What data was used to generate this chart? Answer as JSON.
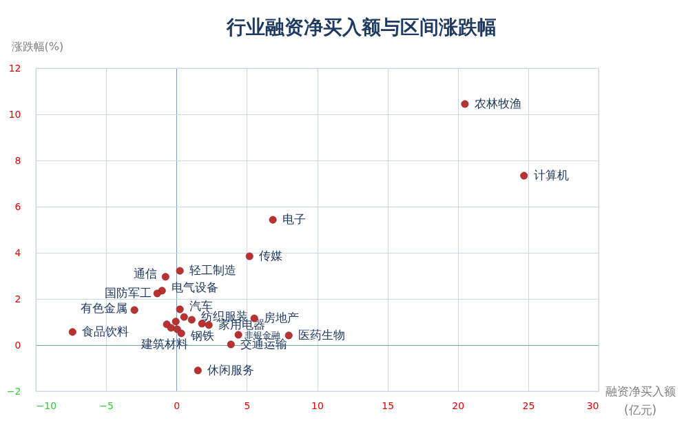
{
  "chart_data": {
    "type": "scatter",
    "title": "行业融资净买入额与区间涨跌幅",
    "xlabel": "融资净买入额\n(亿元)",
    "ylabel": "涨跌幅(%)",
    "xlim": [
      -10,
      30
    ],
    "xticks": [
      -10,
      -5,
      0,
      5,
      10,
      15,
      20,
      25,
      30
    ],
    "ylim": [
      -2,
      12
    ],
    "yticks": [
      -2,
      0,
      2,
      4,
      6,
      8,
      10,
      12
    ],
    "grid": true,
    "marker": "circle",
    "series": [
      {
        "color": "#b83232",
        "x": [
          20.5,
          24.7,
          6.85,
          5.19,
          0.24,
          -0.78,
          -1.03,
          -1.37,
          -2.99,
          0.24,
          -7.39,
          5.53,
          1.52,
          3.87,
          4.4,
          7.98,
          0.54,
          1.08,
          -0.05,
          -0.69,
          -0.39,
          0.05,
          0.34,
          1.81,
          2.3
        ],
        "values": [
          10.45,
          7.34,
          5.43,
          3.85,
          3.22,
          2.96,
          2.36,
          2.24,
          1.52,
          1.55,
          0.57,
          1.16,
          -1.1,
          0.03,
          0.45,
          0.42,
          1.22,
          1.1,
          1.02,
          0.9,
          0.75,
          0.69,
          0.51,
          0.93,
          0.87
        ]
      }
    ],
    "annotations": [
      {
        "text": "农林牧渔",
        "x": 20.5,
        "y": 10.45
      },
      {
        "text": "计算机",
        "x": 24.7,
        "y": 7.34
      },
      {
        "text": "电子",
        "x": 6.85,
        "y": 5.43
      },
      {
        "text": "传媒",
        "x": 5.19,
        "y": 3.85
      },
      {
        "text": "轻工制造",
        "x": 0.24,
        "y": 3.22
      },
      {
        "text": "通信",
        "x": -0.78,
        "y": 2.96
      },
      {
        "text": "电气设备",
        "x": -1.03,
        "y": 2.36
      },
      {
        "text": "国防军工",
        "x": -1.37,
        "y": 2.24
      },
      {
        "text": "有色金属",
        "x": -2.99,
        "y": 1.52
      },
      {
        "text": "汽车",
        "x": 0.24,
        "y": 1.55
      },
      {
        "text": "食品饮料",
        "x": -7.39,
        "y": 0.57
      },
      {
        "text": "房地产",
        "x": 5.53,
        "y": 1.16
      },
      {
        "text": "休闲服务",
        "x": 1.52,
        "y": -1.1
      },
      {
        "text": "交通运输",
        "x": 3.87,
        "y": 0.03
      },
      {
        "text": "非银金融",
        "x": 4.4,
        "y": 0.45
      },
      {
        "text": "医药生物",
        "x": 7.98,
        "y": 0.42
      },
      {
        "text": "纺织服装",
        "x": 1.08,
        "y": 1.1
      },
      {
        "text": "建筑材料",
        "x": 0.05,
        "y": 0.69
      },
      {
        "text": "钢铁",
        "x": 0.34,
        "y": 0.51
      },
      {
        "text": "家用电器",
        "x": 2.3,
        "y": 0.87
      }
    ]
  }
}
